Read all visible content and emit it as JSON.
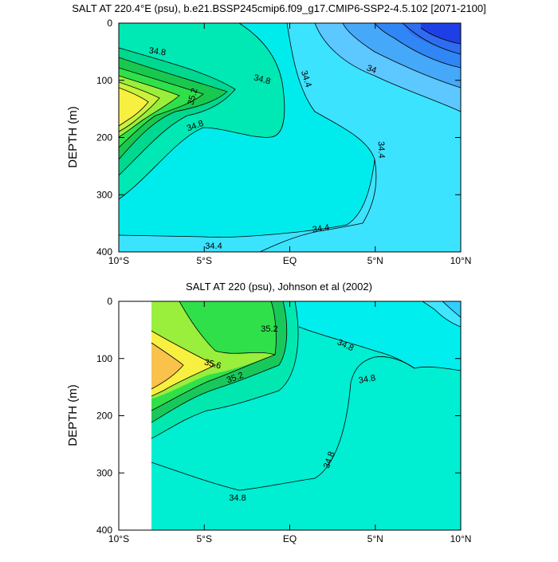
{
  "colors": {
    "c34_0": "#1f3fe6",
    "c34_2": "#2f6df0",
    "c34_4": "#45a8f8",
    "c34_6": "#5cc8ff",
    "c34_8": "#3ce3ff",
    "c35_0": "#00f0e0",
    "c35_2": "#00e8a6",
    "c35_4": "#19c85a",
    "c35_6": "#40e04a",
    "c35_8": "#9eee3c",
    "c36_0": "#f8f040",
    "c36_2": "#f9c24a",
    "fill_bg_top": "#3ce3ff",
    "fill_bg_bottom": "#00eed2"
  },
  "chart_data": [
    {
      "type": "contour",
      "title": "SALT AT 220.4°E (psu), b.e21.BSSP245cmip6.f09_g17.CMIP6-SSP2-4.5.102 [2071-2100]",
      "xlabel": "",
      "ylabel": "DEPTH (m)",
      "x_ticks": [
        "10°S",
        "5°S",
        "EQ",
        "5°N",
        "10°N"
      ],
      "y_ticks": [
        "0",
        "100",
        "200",
        "300",
        "400"
      ],
      "xlim_deg": [
        -10,
        10
      ],
      "ylim_m": [
        400,
        0
      ],
      "contour_labels": [
        "34.8",
        "34.8",
        "35.2",
        "34.8",
        "34.4",
        "34",
        "34.4",
        "34.4",
        "34.4"
      ]
    },
    {
      "type": "contour",
      "title": "SALT AT 220 (psu), Johnson et al (2002)",
      "xlabel": "",
      "ylabel": "DEPTH (m)",
      "x_ticks": [
        "10°S",
        "5°S",
        "EQ",
        "5°N",
        "10°N"
      ],
      "y_ticks": [
        "0",
        "100",
        "200",
        "300",
        "400"
      ],
      "xlim_deg": [
        -10,
        10
      ],
      "ylim_m": [
        400,
        0
      ],
      "data_xlim_deg": [
        -8,
        10
      ],
      "contour_labels": [
        "35.2",
        "34.8",
        "35.6",
        "35.2",
        "34.8",
        "34.8",
        "34.8"
      ]
    }
  ]
}
